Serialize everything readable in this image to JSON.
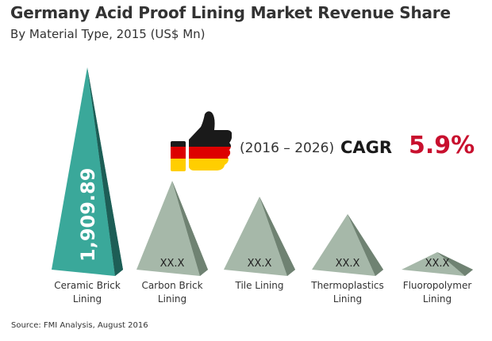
{
  "title": "Germany Acid Proof Lining Market Revenue Share",
  "subtitle": "By Material Type, 2015 (US$ Mn)",
  "cagr": {
    "period": "(2016 – 2026)",
    "label": "CAGR",
    "value": "5.9%"
  },
  "source": "Source:  FMI Analysis, August 2016",
  "colors": {
    "highlight": "#3aa89a",
    "neutral": "#a6b8a9",
    "accent": "#c8102e",
    "flag": [
      "#1a1a1a",
      "#dd0000",
      "#ffce00"
    ]
  },
  "icon": "thumbs-up-icon",
  "chart_data": {
    "type": "bar",
    "shape": "pyramid",
    "title": "Germany Acid Proof Lining Market Revenue Share",
    "subtitle": "By Material Type, 2015 (US$ Mn)",
    "categories": [
      [
        "Ceramic Brick",
        "Lining"
      ],
      [
        "Carbon Brick",
        "Lining"
      ],
      [
        "Tile Lining"
      ],
      [
        "Thermoplastics",
        "Lining"
      ],
      [
        "Fluoropolymer",
        "Lining"
      ]
    ],
    "values": [
      1909.89,
      null,
      null,
      null,
      null
    ],
    "data_labels": [
      "1,909.89",
      "XX.X",
      "XX.X",
      "XX.X",
      "XX.X"
    ],
    "grid": false,
    "legend": false
  }
}
